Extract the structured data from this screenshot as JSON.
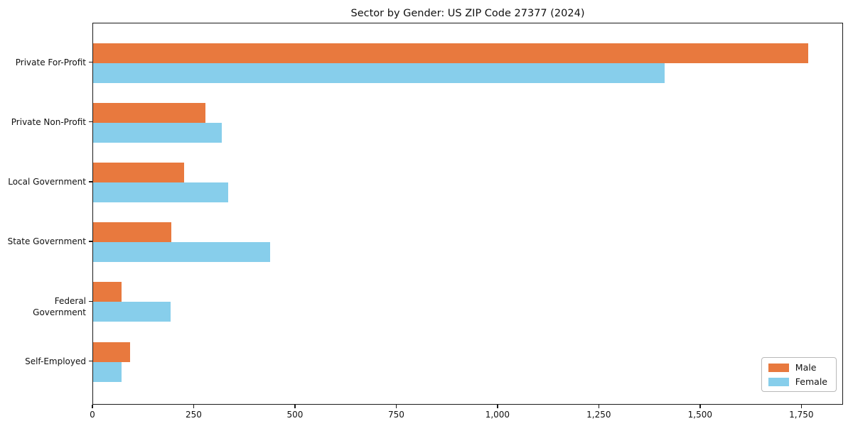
{
  "title": "Sector by Gender: US ZIP Code 27377 (2024)",
  "chart_data": {
    "type": "bar",
    "orientation": "horizontal",
    "title": "Sector by Gender: US ZIP Code 27377 (2024)",
    "xlabel": "",
    "ylabel": "",
    "categories": [
      "Private For-Profit",
      "Private Non-Profit",
      "Local Government",
      "State Government",
      "Federal Government",
      "Self-Employed"
    ],
    "series": [
      {
        "name": "Male",
        "color": "#e8793e",
        "values": [
          1765,
          277,
          224,
          193,
          70,
          91
        ]
      },
      {
        "name": "Female",
        "color": "#87ceeb",
        "values": [
          1411,
          318,
          333,
          437,
          191,
          70
        ]
      }
    ],
    "xticks": [
      0,
      250,
      500,
      750,
      1000,
      1250,
      1500,
      1750
    ],
    "xtick_labels": [
      "0",
      "250",
      "500",
      "750",
      "1,000",
      "1,250",
      "1,500",
      "1,750"
    ],
    "xlim": [
      0,
      1853
    ],
    "grid": false,
    "legend_position": "lower right",
    "background_color": "#ffffff",
    "spine_color": "#1a1a1a"
  },
  "legend": {
    "items": [
      {
        "label": "Male",
        "color": "#e8793e"
      },
      {
        "label": "Female",
        "color": "#87ceeb"
      }
    ]
  }
}
